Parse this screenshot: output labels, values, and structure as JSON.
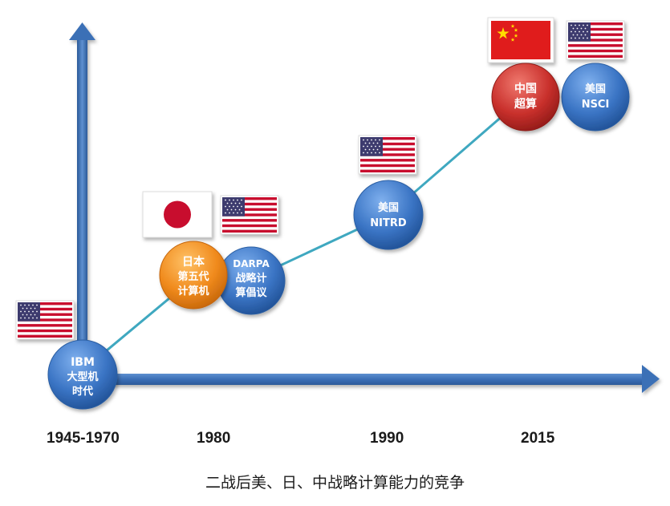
{
  "years": [
    "1945-1970",
    "1980",
    "1990",
    "2015"
  ],
  "caption": "二战后美、日、中战略计算能力的竞争",
  "nodes": {
    "ibm": [
      "IBM",
      "大型机",
      "时代"
    ],
    "japan": [
      "日本",
      "第五代",
      "计算机"
    ],
    "darpa": [
      "DARPA",
      "战略计",
      "算倡议"
    ],
    "nitrd": [
      "美国",
      "NITRD"
    ],
    "china": [
      "中国",
      "超算"
    ],
    "nsci": [
      "美国",
      "NSCI"
    ]
  },
  "colors": {
    "axis": "#3b6fb6",
    "usa_node": "#3a74c4",
    "japan_node": "#f08a1c",
    "china_node": "#c9302c",
    "connector": "#3fa8c0",
    "flag_red": "#c8102e",
    "flag_blue": "#3c3b6e"
  },
  "flags": {
    "ibm": "usa-flag-icon",
    "japan": "japan-flag-icon",
    "darpa": "usa-flag-icon",
    "nitrd": "usa-flag-icon",
    "china": "china-flag-icon",
    "nsci": "usa-flag-icon"
  }
}
